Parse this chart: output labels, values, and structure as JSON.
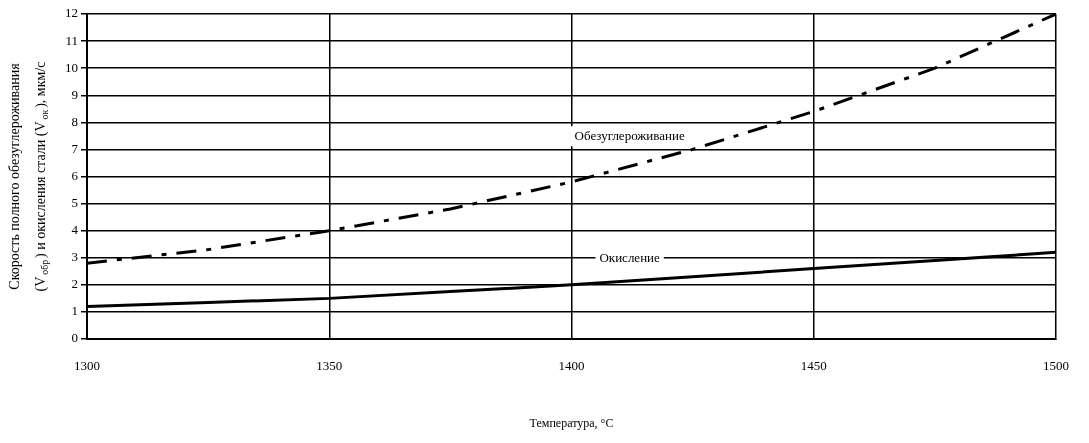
{
  "chart_data": {
    "type": "line",
    "xlabel": "Температура, °C",
    "ylabel": "Скорость полного обезуглероживания (V$_{обр}$) и окисления стали (V$_{ок}$), мкм/с",
    "x": [
      1300,
      1325,
      1350,
      1375,
      1400,
      1425,
      1450,
      1475,
      1500
    ],
    "series": [
      {
        "name": "Обезуглероживание",
        "color": "#000000",
        "line_style": "dashed",
        "values": [
          2.8,
          3.3,
          4.0,
          4.8,
          5.8,
          7.0,
          8.4,
          10.0,
          12.0
        ]
      },
      {
        "name": "Окисление",
        "color": "#000000",
        "line_style": "solid",
        "values": [
          1.2,
          1.35,
          1.5,
          1.75,
          2.0,
          2.3,
          2.6,
          2.9,
          3.2
        ]
      }
    ],
    "xlim": [
      1300,
      1500
    ],
    "xticks": [
      1300,
      1350,
      1400,
      1450,
      1500
    ],
    "ylim": [
      0,
      12
    ],
    "yticks": [
      0,
      1,
      2,
      3,
      4,
      5,
      6,
      7,
      8,
      9,
      10,
      11,
      12
    ],
    "grid": true,
    "legend": false,
    "marker": "none"
  }
}
